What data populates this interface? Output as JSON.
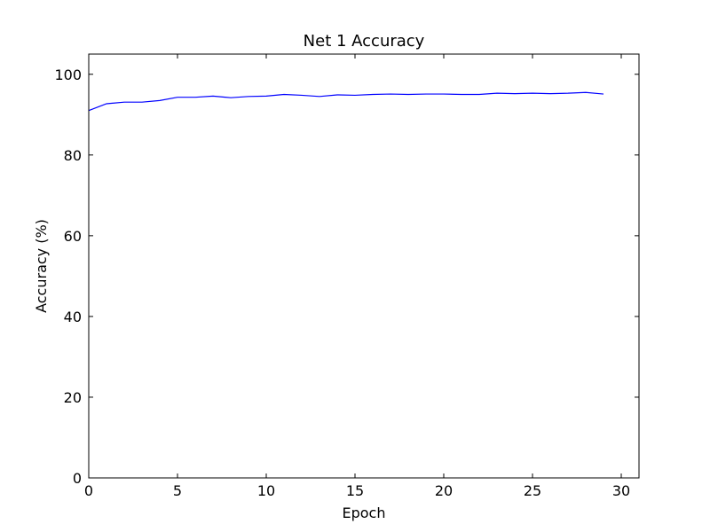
{
  "chart_data": {
    "type": "line",
    "title": "Net 1 Accuracy",
    "xlabel": "Epoch",
    "ylabel": "Accuracy (%)",
    "xlim": [
      0,
      31
    ],
    "ylim": [
      0,
      105
    ],
    "xticks": [
      "0",
      "5",
      "10",
      "15",
      "20",
      "25",
      "30"
    ],
    "yticks": [
      "0",
      "20",
      "40",
      "60",
      "80",
      "100"
    ],
    "grid": false,
    "series": [
      {
        "color": "#0000ff",
        "x": [
          0,
          1,
          2,
          3,
          4,
          5,
          6,
          7,
          8,
          9,
          10,
          11,
          12,
          13,
          14,
          15,
          16,
          17,
          18,
          19,
          20,
          21,
          22,
          23,
          24,
          25,
          26,
          27,
          28,
          29
        ],
        "values": [
          91.0,
          92.7,
          93.1,
          93.1,
          93.5,
          94.3,
          94.3,
          94.6,
          94.2,
          94.5,
          94.6,
          95.0,
          94.8,
          94.5,
          94.9,
          94.8,
          95.0,
          95.1,
          95.0,
          95.1,
          95.1,
          95.0,
          95.0,
          95.3,
          95.2,
          95.3,
          95.2,
          95.3,
          95.5,
          95.1
        ]
      }
    ]
  }
}
